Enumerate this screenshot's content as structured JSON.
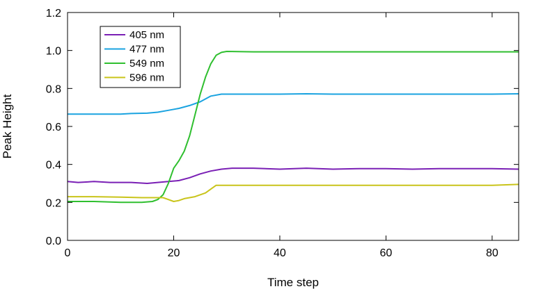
{
  "chart_data": {
    "type": "line",
    "xlabel": "Time step",
    "ylabel": "Peak Height",
    "xlim": [
      0,
      85
    ],
    "ylim": [
      0.0,
      1.2
    ],
    "x_ticks": [
      0,
      20,
      40,
      60,
      80
    ],
    "y_ticks": [
      0.0,
      0.2,
      0.4,
      0.6,
      0.8,
      1.0,
      1.2
    ],
    "x_tick_labels": [
      "0",
      "20",
      "40",
      "60",
      "80"
    ],
    "y_tick_labels": [
      "0.0",
      "0.2",
      "0.4",
      "0.6",
      "0.8",
      "1.0",
      "1.2"
    ],
    "legend_position": "top-left",
    "grid": false,
    "series": [
      {
        "name": "405 nm",
        "color": "#7a1fb5",
        "points": [
          [
            0,
            0.31
          ],
          [
            2,
            0.305
          ],
          [
            5,
            0.31
          ],
          [
            8,
            0.305
          ],
          [
            10,
            0.305
          ],
          [
            12,
            0.305
          ],
          [
            15,
            0.3
          ],
          [
            17,
            0.305
          ],
          [
            19,
            0.31
          ],
          [
            21,
            0.315
          ],
          [
            23,
            0.33
          ],
          [
            25,
            0.35
          ],
          [
            27,
            0.365
          ],
          [
            29,
            0.375
          ],
          [
            31,
            0.38
          ],
          [
            35,
            0.38
          ],
          [
            40,
            0.375
          ],
          [
            45,
            0.38
          ],
          [
            50,
            0.375
          ],
          [
            55,
            0.378
          ],
          [
            60,
            0.378
          ],
          [
            65,
            0.375
          ],
          [
            70,
            0.378
          ],
          [
            75,
            0.378
          ],
          [
            80,
            0.378
          ],
          [
            85,
            0.375
          ]
        ]
      },
      {
        "name": "477 nm",
        "color": "#1aa3e0",
        "points": [
          [
            0,
            0.665
          ],
          [
            5,
            0.665
          ],
          [
            10,
            0.665
          ],
          [
            12,
            0.668
          ],
          [
            15,
            0.67
          ],
          [
            17,
            0.675
          ],
          [
            19,
            0.685
          ],
          [
            21,
            0.695
          ],
          [
            23,
            0.71
          ],
          [
            25,
            0.73
          ],
          [
            27,
            0.76
          ],
          [
            29,
            0.77
          ],
          [
            31,
            0.77
          ],
          [
            35,
            0.77
          ],
          [
            40,
            0.77
          ],
          [
            45,
            0.772
          ],
          [
            50,
            0.77
          ],
          [
            55,
            0.77
          ],
          [
            60,
            0.77
          ],
          [
            65,
            0.77
          ],
          [
            70,
            0.77
          ],
          [
            75,
            0.77
          ],
          [
            80,
            0.77
          ],
          [
            85,
            0.772
          ]
        ]
      },
      {
        "name": "549 nm",
        "color": "#2fbf2f",
        "points": [
          [
            0,
            0.205
          ],
          [
            5,
            0.205
          ],
          [
            10,
            0.2
          ],
          [
            14,
            0.2
          ],
          [
            16,
            0.205
          ],
          [
            17,
            0.215
          ],
          [
            18,
            0.24
          ],
          [
            19,
            0.3
          ],
          [
            20,
            0.38
          ],
          [
            21,
            0.42
          ],
          [
            22,
            0.47
          ],
          [
            23,
            0.55
          ],
          [
            24,
            0.66
          ],
          [
            25,
            0.77
          ],
          [
            26,
            0.86
          ],
          [
            27,
            0.93
          ],
          [
            28,
            0.975
          ],
          [
            29,
            0.99
          ],
          [
            30,
            0.995
          ],
          [
            35,
            0.993
          ],
          [
            40,
            0.993
          ],
          [
            45,
            0.993
          ],
          [
            50,
            0.993
          ],
          [
            55,
            0.993
          ],
          [
            60,
            0.993
          ],
          [
            65,
            0.993
          ],
          [
            70,
            0.993
          ],
          [
            75,
            0.993
          ],
          [
            80,
            0.993
          ],
          [
            85,
            0.993
          ]
        ]
      },
      {
        "name": "596 nm",
        "color": "#c9c41a",
        "points": [
          [
            0,
            0.23
          ],
          [
            5,
            0.23
          ],
          [
            10,
            0.228
          ],
          [
            14,
            0.225
          ],
          [
            16,
            0.225
          ],
          [
            18,
            0.225
          ],
          [
            19,
            0.215
          ],
          [
            20,
            0.205
          ],
          [
            21,
            0.21
          ],
          [
            22,
            0.22
          ],
          [
            24,
            0.23
          ],
          [
            26,
            0.25
          ],
          [
            27,
            0.27
          ],
          [
            28,
            0.29
          ],
          [
            30,
            0.29
          ],
          [
            35,
            0.29
          ],
          [
            40,
            0.29
          ],
          [
            45,
            0.29
          ],
          [
            50,
            0.29
          ],
          [
            55,
            0.29
          ],
          [
            60,
            0.29
          ],
          [
            65,
            0.29
          ],
          [
            70,
            0.29
          ],
          [
            75,
            0.29
          ],
          [
            80,
            0.29
          ],
          [
            85,
            0.295
          ]
        ]
      }
    ]
  }
}
